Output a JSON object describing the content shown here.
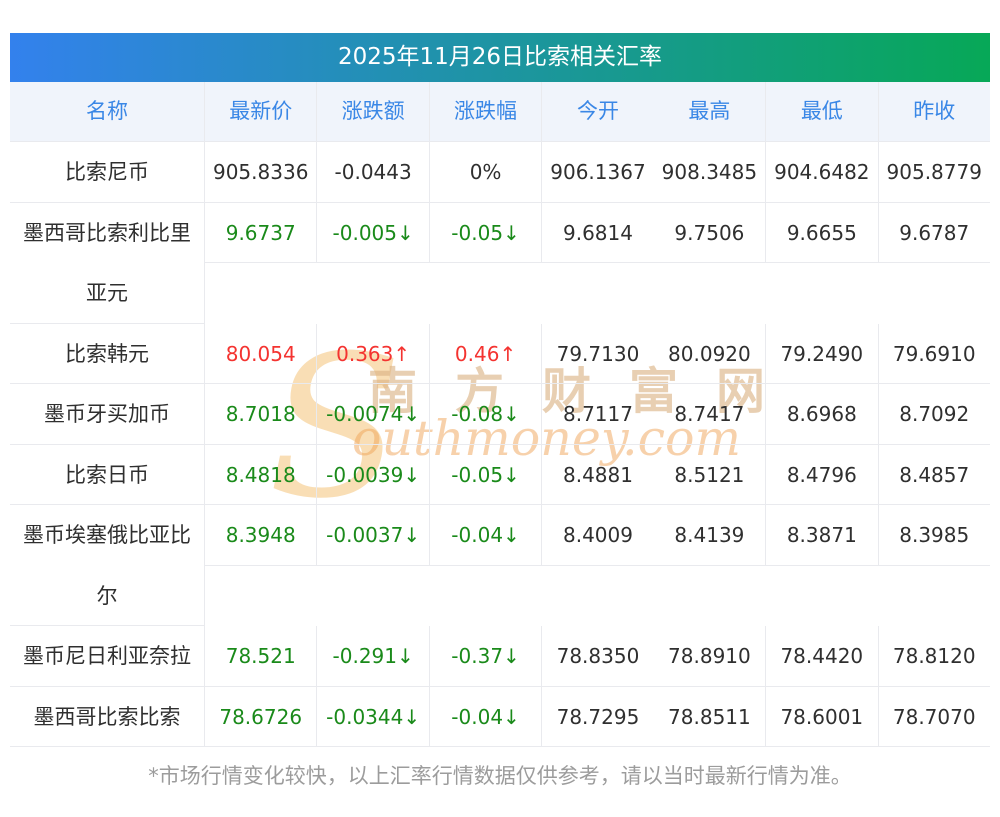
{
  "title": "2025年11月26日比索相关汇率",
  "columns": [
    "名称",
    "最新价",
    "涨跌额",
    "涨跌幅",
    "今开",
    "最高",
    "最低",
    "昨收"
  ],
  "rows": [
    {
      "name": "比索尼币",
      "latest": "905.8336",
      "change": "-0.0443",
      "pct": "0%",
      "open": "906.1367",
      "high": "908.3485",
      "low": "904.6482",
      "prev": "905.8779",
      "trend": "flat"
    },
    {
      "name": "墨西哥比索利比里\n亚元",
      "latest": "9.6737",
      "change": "-0.005↓",
      "pct": "-0.05↓",
      "open": "9.6814",
      "high": "9.7506",
      "low": "9.6655",
      "prev": "9.6787",
      "trend": "down"
    },
    {
      "name": "比索韩元",
      "latest": "80.054",
      "change": "0.363↑",
      "pct": "0.46↑",
      "open": "79.7130",
      "high": "80.0920",
      "low": "79.2490",
      "prev": "79.6910",
      "trend": "up"
    },
    {
      "name": "墨币牙买加币",
      "latest": "8.7018",
      "change": "-0.0074↓",
      "pct": "-0.08↓",
      "open": "8.7117",
      "high": "8.7417",
      "low": "8.6968",
      "prev": "8.7092",
      "trend": "down"
    },
    {
      "name": "比索日币",
      "latest": "8.4818",
      "change": "-0.0039↓",
      "pct": "-0.05↓",
      "open": "8.4881",
      "high": "8.5121",
      "low": "8.4796",
      "prev": "8.4857",
      "trend": "down"
    },
    {
      "name": "墨币埃塞俄比亚比\n尔",
      "latest": "8.3948",
      "change": "-0.0037↓",
      "pct": "-0.04↓",
      "open": "8.4009",
      "high": "8.4139",
      "low": "8.3871",
      "prev": "8.3985",
      "trend": "down"
    },
    {
      "name": "墨币尼日利亚奈拉",
      "latest": "78.521",
      "change": "-0.291↓",
      "pct": "-0.37↓",
      "open": "78.8350",
      "high": "78.8910",
      "low": "78.4420",
      "prev": "78.8120",
      "trend": "down"
    },
    {
      "name": "墨西哥比索比索",
      "latest": "78.6726",
      "change": "-0.0344↓",
      "pct": "-0.04↓",
      "open": "78.7295",
      "high": "78.8511",
      "low": "78.6001",
      "prev": "78.7070",
      "trend": "down"
    }
  ],
  "footer": "*市场行情变化较快，以上汇率行情数据仅供参考，请以当时最新行情为准。",
  "watermark": {
    "cn": "南方财富网",
    "en_initial": "S",
    "en_rest": "outhmoney.com"
  },
  "colors": {
    "up": "#f43330",
    "down": "#1a8a1a",
    "flat": "#2f2f2f",
    "title_gradient_left": "#3381ed",
    "title_gradient_right": "#07a857",
    "column_header_text": "#3a87e6"
  }
}
